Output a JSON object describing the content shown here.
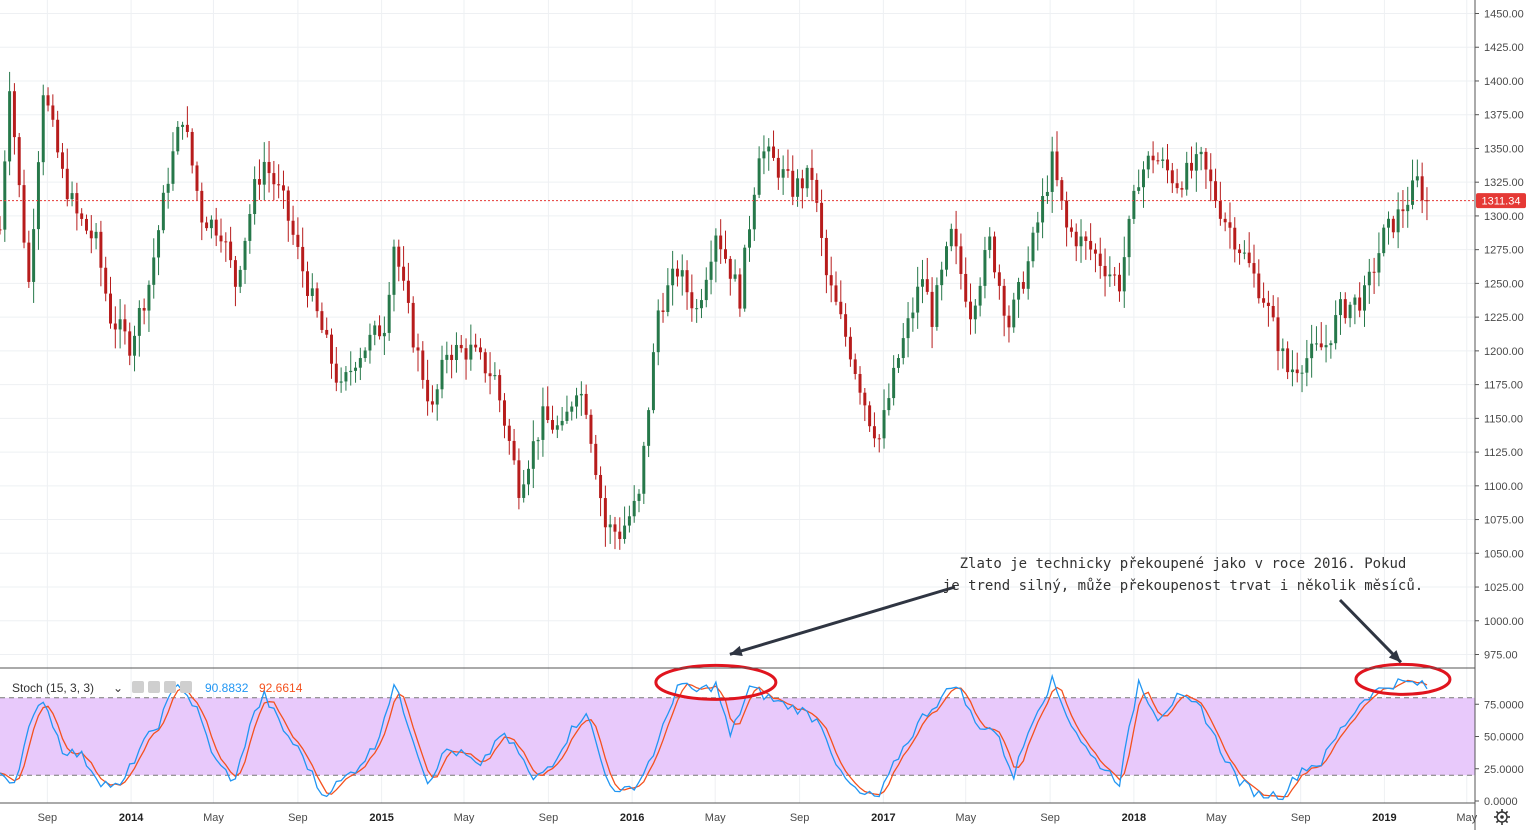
{
  "chart_data": {
    "type": "candlestick",
    "price_axis": {
      "range": [
        965,
        1460
      ],
      "ticks": [
        "1450.00",
        "1425.00",
        "1400.00",
        "1375.00",
        "1350.00",
        "1325.00",
        "1300.00",
        "1275.00",
        "1250.00",
        "1225.00",
        "1200.00",
        "1175.00",
        "1150.00",
        "1125.00",
        "1100.00",
        "1075.00",
        "1050.00",
        "1025.00",
        "1000.00",
        "975.00"
      ]
    },
    "current_price": {
      "label": "1311.34",
      "value": 1311.34,
      "color": "#e53935"
    },
    "colors": {
      "up": "#26784a",
      "down": "#b71c1c",
      "k_line": "#2196f3",
      "d_line": "#f4511e",
      "band": "#e8c9fb",
      "highlight": "#e0141e"
    },
    "time_axis": {
      "start": "2013-06-24",
      "end": "2019-05-13",
      "labels": [
        {
          "text": "Sep",
          "date": "2013-09-01",
          "bold": false
        },
        {
          "text": "2014",
          "date": "2014-01-01",
          "bold": true
        },
        {
          "text": "May",
          "date": "2014-05-01",
          "bold": false
        },
        {
          "text": "Sep",
          "date": "2014-09-01",
          "bold": false
        },
        {
          "text": "2015",
          "date": "2015-01-01",
          "bold": true
        },
        {
          "text": "May",
          "date": "2015-05-01",
          "bold": false
        },
        {
          "text": "Sep",
          "date": "2015-09-01",
          "bold": false
        },
        {
          "text": "2016",
          "date": "2016-01-01",
          "bold": true
        },
        {
          "text": "May",
          "date": "2016-05-01",
          "bold": false
        },
        {
          "text": "Sep",
          "date": "2016-09-01",
          "bold": false
        },
        {
          "text": "2017",
          "date": "2017-01-01",
          "bold": true
        },
        {
          "text": "May",
          "date": "2017-05-01",
          "bold": false
        },
        {
          "text": "Sep",
          "date": "2017-09-01",
          "bold": false
        },
        {
          "text": "2018",
          "date": "2018-01-01",
          "bold": true
        },
        {
          "text": "May",
          "date": "2018-05-01",
          "bold": false
        },
        {
          "text": "Sep",
          "date": "2018-09-01",
          "bold": false
        },
        {
          "text": "2019",
          "date": "2019-01-01",
          "bold": true
        },
        {
          "text": "May",
          "date": "2019-05-01",
          "bold": false
        }
      ]
    },
    "price_keypoints": [
      [
        "2013-06-24",
        1290
      ],
      [
        "2013-07-08",
        1400
      ],
      [
        "2013-07-22",
        1320
      ],
      [
        "2013-08-05",
        1250
      ],
      [
        "2013-08-26",
        1395
      ],
      [
        "2013-09-23",
        1330
      ],
      [
        "2013-10-14",
        1300
      ],
      [
        "2013-11-11",
        1280
      ],
      [
        "2013-12-02",
        1225
      ],
      [
        "2013-12-30",
        1205
      ],
      [
        "2014-01-27",
        1250
      ],
      [
        "2014-02-24",
        1330
      ],
      [
        "2014-03-17",
        1375
      ],
      [
        "2014-04-14",
        1300
      ],
      [
        "2014-05-12",
        1290
      ],
      [
        "2014-06-02",
        1250
      ],
      [
        "2014-06-30",
        1320
      ],
      [
        "2014-07-14",
        1340
      ],
      [
        "2014-08-11",
        1310
      ],
      [
        "2014-09-08",
        1260
      ],
      [
        "2014-10-06",
        1215
      ],
      [
        "2014-11-03",
        1170
      ],
      [
        "2014-11-24",
        1195
      ],
      [
        "2015-01-05",
        1220
      ],
      [
        "2015-01-19",
        1280
      ],
      [
        "2015-02-16",
        1210
      ],
      [
        "2015-03-16",
        1155
      ],
      [
        "2015-04-06",
        1200
      ],
      [
        "2015-05-11",
        1200
      ],
      [
        "2015-06-15",
        1180
      ],
      [
        "2015-07-20",
        1100
      ],
      [
        "2015-08-24",
        1150
      ],
      [
        "2015-09-21",
        1140
      ],
      [
        "2015-10-12",
        1175
      ],
      [
        "2015-10-26",
        1160
      ],
      [
        "2015-11-23",
        1070
      ],
      [
        "2015-12-14",
        1065
      ],
      [
        "2016-01-11",
        1090
      ],
      [
        "2016-02-08",
        1230
      ],
      [
        "2016-03-07",
        1260
      ],
      [
        "2016-04-04",
        1230
      ],
      [
        "2016-05-02",
        1290
      ],
      [
        "2016-06-06",
        1240
      ],
      [
        "2016-07-04",
        1350
      ],
      [
        "2016-07-25",
        1340
      ],
      [
        "2016-08-22",
        1320
      ],
      [
        "2016-09-19",
        1330
      ],
      [
        "2016-10-10",
        1255
      ],
      [
        "2016-11-14",
        1200
      ],
      [
        "2016-12-12",
        1150
      ],
      [
        "2016-12-26",
        1135
      ],
      [
        "2017-01-23",
        1195
      ],
      [
        "2017-02-27",
        1255
      ],
      [
        "2017-03-13",
        1225
      ],
      [
        "2017-04-10",
        1285
      ],
      [
        "2017-05-08",
        1230
      ],
      [
        "2017-06-05",
        1280
      ],
      [
        "2017-07-03",
        1220
      ],
      [
        "2017-07-31",
        1265
      ],
      [
        "2017-09-04",
        1340
      ],
      [
        "2017-09-25",
        1290
      ],
      [
        "2017-10-30",
        1275
      ],
      [
        "2017-12-11",
        1250
      ],
      [
        "2018-01-08",
        1330
      ],
      [
        "2018-01-29",
        1345
      ],
      [
        "2018-03-05",
        1325
      ],
      [
        "2018-04-09",
        1340
      ],
      [
        "2018-05-07",
        1305
      ],
      [
        "2018-06-11",
        1270
      ],
      [
        "2018-07-09",
        1240
      ],
      [
        "2018-08-13",
        1185
      ],
      [
        "2018-09-10",
        1195
      ],
      [
        "2018-10-08",
        1205
      ],
      [
        "2018-10-29",
        1230
      ],
      [
        "2018-12-03",
        1240
      ],
      [
        "2018-12-31",
        1285
      ],
      [
        "2019-01-21",
        1300
      ],
      [
        "2019-02-18",
        1325
      ],
      [
        "2019-03-04",
        1311
      ]
    ],
    "stochastic": {
      "label": "Stoch (15, 3, 3)",
      "k_value": "90.8832",
      "d_value": "92.6614",
      "range": [
        0,
        100
      ],
      "ticks": [
        "75.0000",
        "50.0000",
        "25.0000",
        "0.0000"
      ],
      "band": [
        20,
        80
      ],
      "k_keypoints": [
        [
          "2013-06-24",
          22
        ],
        [
          "2013-07-15",
          15
        ],
        [
          "2013-08-05",
          55
        ],
        [
          "2013-08-26",
          80
        ],
        [
          "2013-09-23",
          40
        ],
        [
          "2013-10-21",
          35
        ],
        [
          "2013-11-18",
          15
        ],
        [
          "2013-12-16",
          10
        ],
        [
          "2014-01-13",
          40
        ],
        [
          "2014-02-10",
          60
        ],
        [
          "2014-03-10",
          93
        ],
        [
          "2014-04-07",
          70
        ],
        [
          "2014-05-05",
          30
        ],
        [
          "2014-06-02",
          15
        ],
        [
          "2014-06-23",
          60
        ],
        [
          "2014-07-14",
          82
        ],
        [
          "2014-08-11",
          55
        ],
        [
          "2014-09-08",
          35
        ],
        [
          "2014-10-06",
          5
        ],
        [
          "2014-11-03",
          15
        ],
        [
          "2014-11-24",
          25
        ],
        [
          "2014-12-22",
          42
        ],
        [
          "2015-01-19",
          90
        ],
        [
          "2015-02-09",
          60
        ],
        [
          "2015-03-09",
          15
        ],
        [
          "2015-04-06",
          40
        ],
        [
          "2015-05-04",
          35
        ],
        [
          "2015-05-25",
          25
        ],
        [
          "2015-06-22",
          52
        ],
        [
          "2015-07-20",
          38
        ],
        [
          "2015-08-10",
          15
        ],
        [
          "2015-09-07",
          30
        ],
        [
          "2015-10-05",
          55
        ],
        [
          "2015-10-26",
          70
        ],
        [
          "2015-11-23",
          20
        ],
        [
          "2015-12-14",
          5
        ],
        [
          "2016-01-11",
          15
        ],
        [
          "2016-02-08",
          45
        ],
        [
          "2016-03-07",
          90
        ],
        [
          "2016-04-04",
          85
        ],
        [
          "2016-05-02",
          90
        ],
        [
          "2016-05-23",
          50
        ],
        [
          "2016-06-20",
          88
        ],
        [
          "2016-07-11",
          82
        ],
        [
          "2016-08-08",
          75
        ],
        [
          "2016-09-05",
          70
        ],
        [
          "2016-10-03",
          60
        ],
        [
          "2016-10-31",
          20
        ],
        [
          "2016-11-28",
          5
        ],
        [
          "2016-12-26",
          3
        ],
        [
          "2017-01-23",
          35
        ],
        [
          "2017-02-27",
          65
        ],
        [
          "2017-03-27",
          80
        ],
        [
          "2017-04-17",
          92
        ],
        [
          "2017-05-15",
          60
        ],
        [
          "2017-06-12",
          55
        ],
        [
          "2017-07-10",
          20
        ],
        [
          "2017-08-07",
          65
        ],
        [
          "2017-09-04",
          93
        ],
        [
          "2017-10-02",
          60
        ],
        [
          "2017-10-30",
          35
        ],
        [
          "2017-12-11",
          15
        ],
        [
          "2018-01-08",
          93
        ],
        [
          "2018-02-05",
          65
        ],
        [
          "2018-03-05",
          80
        ],
        [
          "2018-04-09",
          72
        ],
        [
          "2018-05-07",
          40
        ],
        [
          "2018-06-04",
          15
        ],
        [
          "2018-07-02",
          5
        ],
        [
          "2018-08-06",
          5
        ],
        [
          "2018-09-03",
          25
        ],
        [
          "2018-10-01",
          30
        ],
        [
          "2018-10-29",
          55
        ],
        [
          "2018-12-03",
          80
        ],
        [
          "2018-12-31",
          88
        ],
        [
          "2019-01-21",
          92
        ],
        [
          "2019-02-18",
          91
        ],
        [
          "2019-03-04",
          88
        ]
      ]
    },
    "annotation": {
      "line1": "Zlato je technicky překoupené jako v roce 2016. Pokud",
      "line2": "je trend silný, může překoupenost trvat i několik měsíců."
    }
  }
}
